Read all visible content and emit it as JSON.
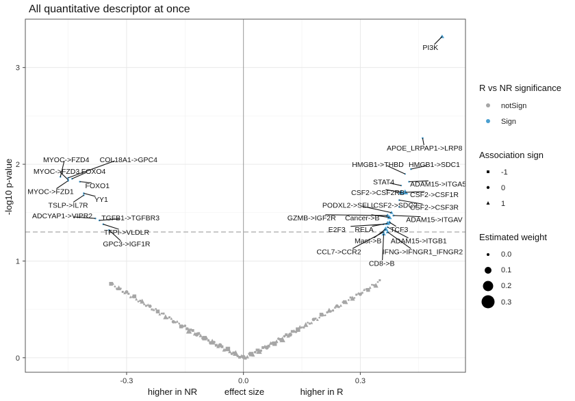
{
  "chart_data": {
    "type": "scatter",
    "title": "All quantitative descriptor at once",
    "xlabel": "effect size",
    "xlabel_left": "higher in NR",
    "xlabel_right": "higher in R",
    "ylabel": "-log10 p-value",
    "xlim": [
      -0.56,
      0.57
    ],
    "ylim": [
      -0.15,
      3.5
    ],
    "x_ticks": [
      -0.3,
      0.0,
      0.3
    ],
    "x_tick_labels": [
      "-0.3",
      "0.0",
      "0.3"
    ],
    "y_ticks": [
      0,
      1,
      2,
      3
    ],
    "y_tick_labels": [
      "0",
      "1",
      "2",
      "3"
    ],
    "significance_threshold": 1.3,
    "grid": true,
    "legend_position": "right",
    "colors": {
      "notSign": "#a6a6a6",
      "Sign": "#4a9fd0"
    },
    "legends": {
      "significance": {
        "title": "R vs NR significance",
        "items": [
          "notSign",
          "Sign"
        ]
      },
      "association": {
        "title": "Association sign",
        "items": [
          "-1",
          "0",
          "1"
        ]
      },
      "weight": {
        "title": "Estimated weight",
        "items": [
          "0.0",
          "0.1",
          "0.2",
          "0.3"
        ]
      }
    },
    "labeled_points": [
      {
        "label": "PI3K",
        "x": 0.51,
        "y": 3.32,
        "shape": "triangle",
        "weight": 0.08
      },
      {
        "label": "APOE_LRPAP1->LRP8",
        "x": 0.46,
        "y": 2.27,
        "shape": "square",
        "weight": 0.02
      },
      {
        "label": "HMGB1->SDC1",
        "x": 0.43,
        "y": 1.95,
        "shape": "circle",
        "weight": 0.02
      },
      {
        "label": "HMGB1->THBD",
        "x": 0.415,
        "y": 1.9,
        "shape": "circle",
        "weight": 0.01
      },
      {
        "label": "ADAM15->ITGA5",
        "x": 0.425,
        "y": 1.82,
        "shape": "circle",
        "weight": 0.02
      },
      {
        "label": "STAT4",
        "x": 0.405,
        "y": 1.78,
        "shape": "circle",
        "weight": 0.01
      },
      {
        "label": "CSF2->CSF1R",
        "x": 0.415,
        "y": 1.71,
        "shape": "triangle",
        "weight": 0.14
      },
      {
        "label": "CSF2->CSF2RB",
        "x": 0.405,
        "y": 1.71,
        "shape": "triangle",
        "weight": 0.12
      },
      {
        "label": "CSF2->CSF3R",
        "x": 0.4,
        "y": 1.63,
        "shape": "circle",
        "weight": 0.02
      },
      {
        "label": "PODXL2->SELL",
        "x": 0.38,
        "y": 1.5,
        "shape": "triangle",
        "weight": 0.06
      },
      {
        "label": "CSF2->SDC2",
        "x": 0.4,
        "y": 1.56,
        "shape": "circle",
        "weight": 0.02
      },
      {
        "label": "ADAM15->ITGAV",
        "x": 0.385,
        "y": 1.47,
        "shape": "circle",
        "weight": 0.03
      },
      {
        "label": "GZMB->IGF2R",
        "x": 0.37,
        "y": 1.47,
        "shape": "triangle",
        "weight": 0.08
      },
      {
        "label": "Cancer->B",
        "x": 0.375,
        "y": 1.45,
        "shape": "triangle",
        "weight": 0.1
      },
      {
        "label": "E2F3",
        "x": 0.36,
        "y": 1.38,
        "shape": "circle",
        "weight": 0.02
      },
      {
        "label": "RELA",
        "x": 0.37,
        "y": 1.39,
        "shape": "triangle",
        "weight": 0.1
      },
      {
        "label": "TCF3",
        "x": 0.375,
        "y": 1.4,
        "shape": "triangle",
        "weight": 0.08
      },
      {
        "label": "Mast->B",
        "x": 0.365,
        "y": 1.33,
        "shape": "triangle",
        "weight": 0.12
      },
      {
        "label": "ADAM15->ITGB1",
        "x": 0.37,
        "y": 1.35,
        "shape": "circle",
        "weight": 0.02
      },
      {
        "label": "CCL7->CCR2",
        "x": 0.36,
        "y": 1.3,
        "shape": "circle",
        "weight": 0.02
      },
      {
        "label": "IFNG->IFNGR1_IFNGR2",
        "x": 0.37,
        "y": 1.3,
        "shape": "triangle",
        "weight": 0.06
      },
      {
        "label": "CD8->B",
        "x": 0.36,
        "y": 1.28,
        "shape": "triangle",
        "weight": 0.08
      },
      {
        "label": "MYOC->FZD4",
        "x": -0.47,
        "y": 1.87,
        "shape": "circle",
        "weight": 0.02
      },
      {
        "label": "COL18A1->GPC4",
        "x": -0.45,
        "y": 1.86,
        "shape": "circle",
        "weight": 0.02
      },
      {
        "label": "FOXO4",
        "x": -0.44,
        "y": 1.85,
        "shape": "circle",
        "weight": 0.02
      },
      {
        "label": "MYOC->FZD3",
        "x": -0.45,
        "y": 1.84,
        "shape": "circle",
        "weight": 0.02
      },
      {
        "label": "FOXO1",
        "x": -0.42,
        "y": 1.82,
        "shape": "circle",
        "weight": 0.02
      },
      {
        "label": "MYOC->FZD1",
        "x": -0.45,
        "y": 1.83,
        "shape": "circle",
        "weight": 0.02
      },
      {
        "label": "YY1",
        "x": -0.41,
        "y": 1.7,
        "shape": "circle",
        "weight": 0.02
      },
      {
        "label": "TSLP->IL7R",
        "x": -0.41,
        "y": 1.68,
        "shape": "circle",
        "weight": 0.02
      },
      {
        "label": "ADCYAP1->VIPR2",
        "x": -0.38,
        "y": 1.44,
        "shape": "circle",
        "weight": 0.02
      },
      {
        "label": "TGFB1->TGFBR3",
        "x": -0.37,
        "y": 1.42,
        "shape": "circle",
        "weight": 0.02
      },
      {
        "label": "TFPI->VLDLR",
        "x": -0.36,
        "y": 1.38,
        "shape": "circle",
        "weight": 0.02
      },
      {
        "label": "GPC3->IGF1R",
        "x": -0.345,
        "y": 1.32,
        "shape": "circle",
        "weight": 0.02
      }
    ],
    "background_curve": {
      "description": "non-significant points following -log10 p ≈ 2.45*|x|^1.08",
      "x_min": -0.34,
      "x_max": 0.35,
      "step": 0.005
    }
  },
  "labels": [
    {
      "text": "PI3K",
      "tx": 0.48,
      "ty": 3.21,
      "anchor": "middle"
    },
    {
      "text": "APOE_LRPAP1->LRP8",
      "tx": 0.465,
      "ty": 2.17,
      "anchor": "middle"
    },
    {
      "text": "HMGB1->SDC1",
      "tx": 0.49,
      "ty": 2.0,
      "anchor": "middle"
    },
    {
      "text": "HMGB1->THBD",
      "tx": 0.345,
      "ty": 2.0,
      "anchor": "middle"
    },
    {
      "text": "ADAM15->ITGA5",
      "tx": 0.5,
      "ty": 1.8,
      "anchor": "middle"
    },
    {
      "text": "STAT4",
      "tx": 0.36,
      "ty": 1.82,
      "anchor": "middle"
    },
    {
      "text": "CSF2->CSF1R",
      "tx": 0.49,
      "ty": 1.69,
      "anchor": "middle"
    },
    {
      "text": "CSF2->CSF2RB",
      "tx": 0.345,
      "ty": 1.71,
      "anchor": "middle"
    },
    {
      "text": "CSF2->CSF3R",
      "tx": 0.49,
      "ty": 1.56,
      "anchor": "middle"
    },
    {
      "text": "PODXL2->SELL",
      "tx": 0.27,
      "ty": 1.58,
      "anchor": "middle"
    },
    {
      "text": "CSF2->SDC2",
      "tx": 0.39,
      "ty": 1.58,
      "anchor": "middle"
    },
    {
      "text": "ADAM15->ITGAV",
      "tx": 0.49,
      "ty": 1.43,
      "anchor": "middle"
    },
    {
      "text": "GZMB->IGF2R",
      "tx": 0.175,
      "ty": 1.45,
      "anchor": "middle"
    },
    {
      "text": "Cancer->B",
      "tx": 0.305,
      "ty": 1.45,
      "anchor": "middle"
    },
    {
      "text": "E2F3",
      "tx": 0.24,
      "ty": 1.33,
      "anchor": "middle"
    },
    {
      "text": "RELA",
      "tx": 0.31,
      "ty": 1.33,
      "anchor": "middle"
    },
    {
      "text": "TCF3",
      "tx": 0.4,
      "ty": 1.33,
      "anchor": "middle"
    },
    {
      "text": "Mast->B",
      "tx": 0.32,
      "ty": 1.21,
      "anchor": "middle"
    },
    {
      "text": "ADAM15->ITGB1",
      "tx": 0.45,
      "ty": 1.21,
      "anchor": "middle"
    },
    {
      "text": "CCL7->CCR2",
      "tx": 0.245,
      "ty": 1.1,
      "anchor": "middle"
    },
    {
      "text": "IFNG->IFNGR1_IFNGR2",
      "tx": 0.46,
      "ty": 1.1,
      "anchor": "middle"
    },
    {
      "text": "CD8->B",
      "tx": 0.355,
      "ty": 0.98,
      "anchor": "middle"
    },
    {
      "text": "MYOC->FZD4",
      "tx": -0.455,
      "ty": 2.05,
      "anchor": "middle"
    },
    {
      "text": "COL18A1->GPC4",
      "tx": -0.295,
      "ty": 2.05,
      "anchor": "middle"
    },
    {
      "text": "FOXO4",
      "tx": -0.385,
      "ty": 1.93,
      "anchor": "middle"
    },
    {
      "text": "MYOC->FZD3",
      "tx": -0.48,
      "ty": 1.93,
      "anchor": "middle"
    },
    {
      "text": "FOXO1",
      "tx": -0.375,
      "ty": 1.78,
      "anchor": "middle"
    },
    {
      "text": "MYOC->FZD1",
      "tx": -0.495,
      "ty": 1.72,
      "anchor": "middle"
    },
    {
      "text": "YY1",
      "tx": -0.365,
      "ty": 1.64,
      "anchor": "middle"
    },
    {
      "text": "TSLP->IL7R",
      "tx": -0.45,
      "ty": 1.58,
      "anchor": "middle"
    },
    {
      "text": "ADCYAP1->VIPR2",
      "tx": -0.465,
      "ty": 1.47,
      "anchor": "middle"
    },
    {
      "text": "TGFB1->TGFBR3",
      "tx": -0.29,
      "ty": 1.45,
      "anchor": "middle"
    },
    {
      "text": "TFPI->VLDLR",
      "tx": -0.3,
      "ty": 1.3,
      "anchor": "middle"
    },
    {
      "text": "GPC3->IGF1R",
      "tx": -0.3,
      "ty": 1.18,
      "anchor": "middle"
    }
  ]
}
